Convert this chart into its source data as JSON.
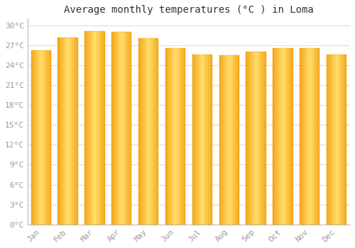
{
  "title": "Average monthly temperatures (°C ) in Loma",
  "months": [
    "Jan",
    "Feb",
    "Mar",
    "Apr",
    "May",
    "Jun",
    "Jul",
    "Aug",
    "Sep",
    "Oct",
    "Nov",
    "Dec"
  ],
  "values": [
    26.2,
    28.1,
    29.1,
    29.0,
    28.0,
    26.6,
    25.6,
    25.5,
    26.0,
    26.5,
    26.6,
    25.6
  ],
  "bar_color_center": "#FFD966",
  "bar_color_edge": "#F0A500",
  "background_color": "#FFFFFF",
  "plot_bg_color": "#FFFFFF",
  "grid_color": "#DDDDDD",
  "ylim": [
    0,
    31
  ],
  "ytick_step": 3,
  "title_fontsize": 10,
  "tick_fontsize": 8,
  "tick_color": "#999999",
  "bar_width": 0.75
}
